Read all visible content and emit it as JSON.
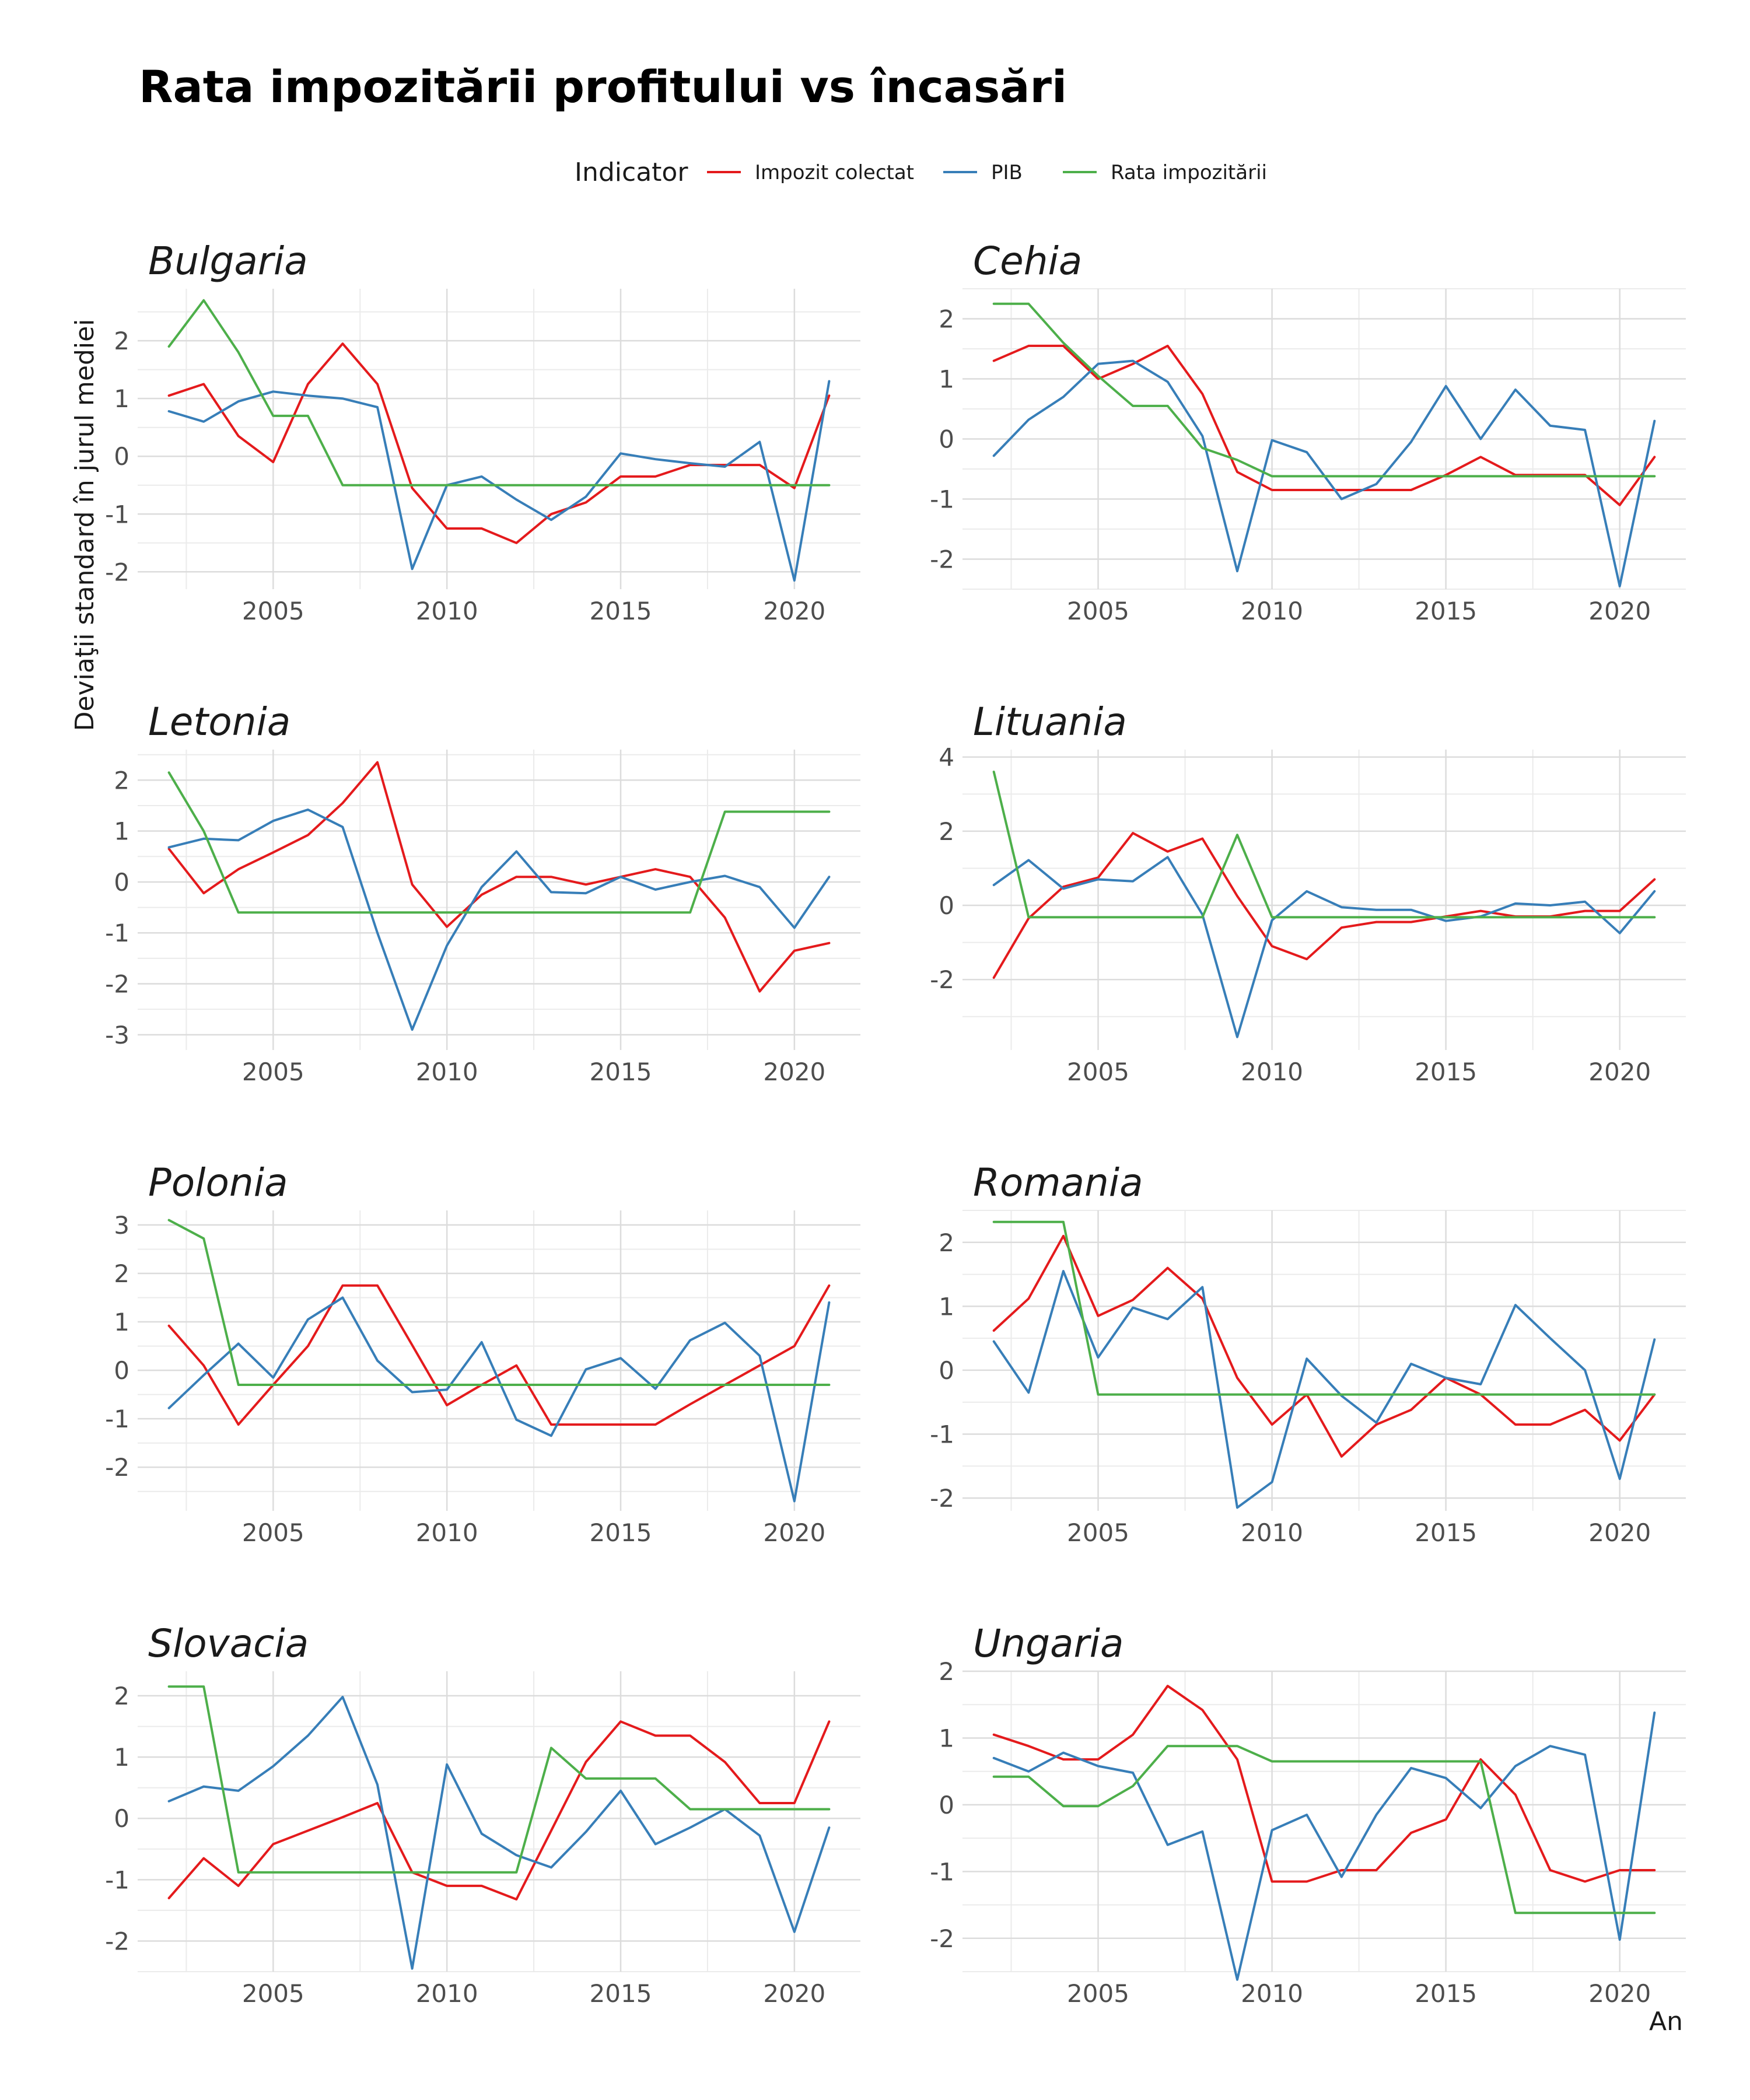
{
  "title": "Rata impozitării profitului vs încasări",
  "legend": {
    "title": "Indicator",
    "items": [
      {
        "label": "Impozit colectat",
        "color": "#e41a1c"
      },
      {
        "label": "PIB",
        "color": "#377eb8"
      },
      {
        "label": "Rata impozitării",
        "color": "#4daf4a"
      }
    ]
  },
  "ylabel": "Deviaţii standard în jurul mediei",
  "xlabel": "An",
  "chart_data": [
    {
      "type": "line",
      "title": "Bulgaria",
      "x": [
        2002,
        2003,
        2004,
        2005,
        2006,
        2007,
        2008,
        2009,
        2010,
        2011,
        2012,
        2013,
        2014,
        2015,
        2016,
        2017,
        2018,
        2019,
        2020,
        2021
      ],
      "ylim": [
        -2.3,
        2.9
      ],
      "yticks": [
        -2,
        -1,
        0,
        1,
        2
      ],
      "xticks": [
        2005,
        2010,
        2015,
        2020
      ],
      "series": [
        {
          "name": "Impozit colectat",
          "values": [
            1.05,
            1.25,
            0.35,
            -0.1,
            1.25,
            1.95,
            1.25,
            -0.55,
            -1.25,
            -1.25,
            -1.5,
            -1.0,
            -0.8,
            -0.35,
            -0.35,
            -0.15,
            -0.15,
            -0.15,
            -0.55,
            1.05
          ]
        },
        {
          "name": "PIB",
          "values": [
            0.78,
            0.6,
            0.95,
            1.12,
            1.05,
            1.0,
            0.85,
            -1.95,
            -0.5,
            -0.35,
            -0.75,
            -1.1,
            -0.7,
            0.05,
            -0.05,
            -0.12,
            -0.18,
            0.25,
            -2.15,
            1.3
          ]
        },
        {
          "name": "Rata impozitării",
          "values": [
            1.9,
            2.7,
            1.8,
            0.7,
            0.7,
            -0.5,
            -0.5,
            -0.5,
            -0.5,
            -0.5,
            -0.5,
            -0.5,
            -0.5,
            -0.5,
            -0.5,
            -0.5,
            -0.5,
            -0.5,
            -0.5,
            -0.5
          ]
        }
      ]
    },
    {
      "type": "line",
      "title": "Cehia",
      "x": [
        2002,
        2003,
        2004,
        2005,
        2006,
        2007,
        2008,
        2009,
        2010,
        2011,
        2012,
        2013,
        2014,
        2015,
        2016,
        2017,
        2018,
        2019,
        2020,
        2021
      ],
      "ylim": [
        -2.5,
        2.5
      ],
      "yticks": [
        -2,
        -1,
        0,
        1,
        2
      ],
      "xticks": [
        2005,
        2010,
        2015,
        2020
      ],
      "series": [
        {
          "name": "Impozit colectat",
          "values": [
            1.3,
            1.55,
            1.55,
            1.0,
            1.25,
            1.55,
            0.75,
            -0.55,
            -0.85,
            -0.85,
            -0.85,
            -0.85,
            -0.85,
            -0.6,
            -0.3,
            -0.6,
            -0.6,
            -0.6,
            -1.1,
            -0.3
          ]
        },
        {
          "name": "PIB",
          "values": [
            -0.28,
            0.32,
            0.7,
            1.25,
            1.3,
            0.95,
            0.05,
            -2.2,
            -0.02,
            -0.22,
            -1.0,
            -0.75,
            -0.05,
            0.88,
            0.0,
            0.82,
            0.22,
            0.15,
            -2.45,
            0.3
          ]
        },
        {
          "name": "Rata impozitării",
          "values": [
            2.25,
            2.25,
            1.6,
            1.05,
            0.55,
            0.55,
            -0.15,
            -0.35,
            -0.62,
            -0.62,
            -0.62,
            -0.62,
            -0.62,
            -0.62,
            -0.62,
            -0.62,
            -0.62,
            -0.62,
            -0.62,
            -0.62
          ]
        }
      ]
    },
    {
      "type": "line",
      "title": "Letonia",
      "x": [
        2002,
        2003,
        2004,
        2005,
        2006,
        2007,
        2008,
        2009,
        2010,
        2011,
        2012,
        2013,
        2014,
        2015,
        2016,
        2017,
        2018,
        2019,
        2020,
        2021
      ],
      "ylim": [
        -3.3,
        2.6
      ],
      "yticks": [
        -3,
        -2,
        -1,
        0,
        1,
        2
      ],
      "xticks": [
        2005,
        2010,
        2015,
        2020
      ],
      "series": [
        {
          "name": "Impozit colectat",
          "values": [
            0.65,
            -0.22,
            0.25,
            0.58,
            0.92,
            1.55,
            2.35,
            -0.05,
            -0.88,
            -0.25,
            0.1,
            0.1,
            -0.05,
            0.1,
            0.25,
            0.1,
            -0.7,
            -2.15,
            -1.35,
            -1.2
          ]
        },
        {
          "name": "PIB",
          "values": [
            0.68,
            0.85,
            0.82,
            1.2,
            1.42,
            1.08,
            -1.0,
            -2.9,
            -1.25,
            -0.1,
            0.6,
            -0.2,
            -0.22,
            0.1,
            -0.15,
            0.0,
            0.12,
            -0.1,
            -0.9,
            0.1
          ]
        },
        {
          "name": "Rata impozitării",
          "values": [
            2.15,
            1.0,
            -0.6,
            -0.6,
            -0.6,
            -0.6,
            -0.6,
            -0.6,
            -0.6,
            -0.6,
            -0.6,
            -0.6,
            -0.6,
            -0.6,
            -0.6,
            -0.6,
            1.38,
            1.38,
            1.38,
            1.38
          ]
        }
      ]
    },
    {
      "type": "line",
      "title": "Lituania",
      "x": [
        2002,
        2003,
        2004,
        2005,
        2006,
        2007,
        2008,
        2009,
        2010,
        2011,
        2012,
        2013,
        2014,
        2015,
        2016,
        2017,
        2018,
        2019,
        2020,
        2021
      ],
      "ylim": [
        -3.9,
        4.2
      ],
      "yticks": [
        -2,
        0,
        2,
        4
      ],
      "xticks": [
        2005,
        2010,
        2015,
        2020
      ],
      "series": [
        {
          "name": "Impozit colectat",
          "values": [
            -1.95,
            -0.35,
            0.5,
            0.75,
            1.95,
            1.45,
            1.8,
            0.25,
            -1.1,
            -1.45,
            -0.6,
            -0.45,
            -0.45,
            -0.3,
            -0.15,
            -0.3,
            -0.3,
            -0.15,
            -0.15,
            0.7
          ]
        },
        {
          "name": "PIB",
          "values": [
            0.55,
            1.22,
            0.45,
            0.7,
            0.65,
            1.3,
            -0.25,
            -3.55,
            -0.4,
            0.38,
            -0.05,
            -0.12,
            -0.12,
            -0.42,
            -0.3,
            0.05,
            0.0,
            0.1,
            -0.75,
            0.38
          ]
        },
        {
          "name": "Rata impozitării",
          "values": [
            3.6,
            -0.32,
            -0.32,
            -0.32,
            -0.32,
            -0.32,
            -0.32,
            1.9,
            -0.32,
            -0.32,
            -0.32,
            -0.32,
            -0.32,
            -0.32,
            -0.32,
            -0.32,
            -0.32,
            -0.32,
            -0.32,
            -0.32
          ]
        }
      ]
    },
    {
      "type": "line",
      "title": "Polonia",
      "x": [
        2002,
        2003,
        2004,
        2005,
        2006,
        2007,
        2008,
        2009,
        2010,
        2011,
        2012,
        2013,
        2014,
        2015,
        2016,
        2017,
        2018,
        2019,
        2020,
        2021
      ],
      "ylim": [
        -2.9,
        3.3
      ],
      "yticks": [
        -2,
        -1,
        0,
        1,
        2,
        3
      ],
      "xticks": [
        2005,
        2010,
        2015,
        2020
      ],
      "series": [
        {
          "name": "Impozit colectat",
          "values": [
            0.92,
            0.1,
            -1.12,
            -0.3,
            0.5,
            1.75,
            1.75,
            0.52,
            -0.72,
            -0.3,
            0.1,
            -1.12,
            -1.12,
            -1.12,
            -1.12,
            -0.7,
            -0.3,
            0.1,
            0.5,
            1.75
          ]
        },
        {
          "name": "PIB",
          "values": [
            -0.78,
            -0.1,
            0.55,
            -0.15,
            1.05,
            1.5,
            0.2,
            -0.45,
            -0.4,
            0.58,
            -1.02,
            -1.35,
            0.02,
            0.25,
            -0.38,
            0.62,
            0.98,
            0.3,
            -2.7,
            1.4
          ]
        },
        {
          "name": "Rata impozitării",
          "values": [
            3.1,
            2.72,
            -0.3,
            -0.3,
            -0.3,
            -0.3,
            -0.3,
            -0.3,
            -0.3,
            -0.3,
            -0.3,
            -0.3,
            -0.3,
            -0.3,
            -0.3,
            -0.3,
            -0.3,
            -0.3,
            -0.3,
            -0.3
          ]
        }
      ]
    },
    {
      "type": "line",
      "title": "Romania",
      "x": [
        2002,
        2003,
        2004,
        2005,
        2006,
        2007,
        2008,
        2009,
        2010,
        2011,
        2012,
        2013,
        2014,
        2015,
        2016,
        2017,
        2018,
        2019,
        2020,
        2021
      ],
      "ylim": [
        -2.2,
        2.5
      ],
      "yticks": [
        -2,
        -1,
        0,
        1,
        2
      ],
      "xticks": [
        2005,
        2010,
        2015,
        2020
      ],
      "series": [
        {
          "name": "Impozit colectat",
          "values": [
            0.62,
            1.12,
            2.1,
            0.85,
            1.1,
            1.6,
            1.12,
            -0.12,
            -0.85,
            -0.38,
            -1.35,
            -0.85,
            -0.62,
            -0.12,
            -0.38,
            -0.85,
            -0.85,
            -0.62,
            -1.1,
            -0.38
          ]
        },
        {
          "name": "PIB",
          "values": [
            0.45,
            -0.35,
            1.55,
            0.2,
            0.98,
            0.8,
            1.3,
            -2.15,
            -1.75,
            0.18,
            -0.4,
            -0.82,
            0.1,
            -0.12,
            -0.22,
            1.02,
            0.5,
            0.0,
            -1.7,
            0.48
          ]
        },
        {
          "name": "Rata impozitării",
          "values": [
            2.32,
            2.32,
            2.32,
            -0.38,
            -0.38,
            -0.38,
            -0.38,
            -0.38,
            -0.38,
            -0.38,
            -0.38,
            -0.38,
            -0.38,
            -0.38,
            -0.38,
            -0.38,
            -0.38,
            -0.38,
            -0.38,
            -0.38
          ]
        }
      ]
    },
    {
      "type": "line",
      "title": "Slovacia",
      "x": [
        2002,
        2003,
        2004,
        2005,
        2006,
        2007,
        2008,
        2009,
        2010,
        2011,
        2012,
        2013,
        2014,
        2015,
        2016,
        2017,
        2018,
        2019,
        2020,
        2021
      ],
      "ylim": [
        -2.5,
        2.4
      ],
      "yticks": [
        -2,
        -1,
        0,
        1,
        2
      ],
      "xticks": [
        2005,
        2010,
        2015,
        2020
      ],
      "series": [
        {
          "name": "Impozit colectat",
          "values": [
            -1.3,
            -0.65,
            -1.1,
            -0.42,
            -0.2,
            0.02,
            0.25,
            -0.88,
            -1.1,
            -1.1,
            -1.32,
            -0.2,
            0.92,
            1.58,
            1.35,
            1.35,
            0.92,
            0.25,
            0.25,
            1.58
          ]
        },
        {
          "name": "PIB",
          "values": [
            0.28,
            0.52,
            0.45,
            0.85,
            1.35,
            1.98,
            0.55,
            -2.45,
            0.88,
            -0.25,
            -0.6,
            -0.8,
            -0.22,
            0.45,
            -0.42,
            -0.15,
            0.15,
            -0.28,
            -1.85,
            -0.15
          ]
        },
        {
          "name": "Rata impozitării",
          "values": [
            2.15,
            2.15,
            -0.88,
            -0.88,
            -0.88,
            -0.88,
            -0.88,
            -0.88,
            -0.88,
            -0.88,
            -0.88,
            1.15,
            0.65,
            0.65,
            0.65,
            0.15,
            0.15,
            0.15,
            0.15,
            0.15
          ]
        }
      ]
    },
    {
      "type": "line",
      "title": "Ungaria",
      "x": [
        2002,
        2003,
        2004,
        2005,
        2006,
        2007,
        2008,
        2009,
        2010,
        2011,
        2012,
        2013,
        2014,
        2015,
        2016,
        2017,
        2018,
        2019,
        2020,
        2021
      ],
      "ylim": [
        -2.5,
        2.0
      ],
      "yticks": [
        -2,
        -1,
        0,
        1,
        2
      ],
      "xticks": [
        2005,
        2010,
        2015,
        2020
      ],
      "series": [
        {
          "name": "Impozit colectat",
          "values": [
            1.05,
            0.88,
            0.68,
            0.68,
            1.05,
            1.78,
            1.42,
            0.68,
            -1.15,
            -1.15,
            -0.98,
            -0.98,
            -0.42,
            -0.22,
            0.68,
            0.15,
            -0.98,
            -1.15,
            -0.98,
            -0.98
          ]
        },
        {
          "name": "PIB",
          "values": [
            0.7,
            0.5,
            0.78,
            0.58,
            0.48,
            -0.6,
            -0.4,
            -2.62,
            -0.38,
            -0.15,
            -1.08,
            -0.15,
            0.55,
            0.4,
            -0.05,
            0.58,
            0.88,
            0.75,
            -2.02,
            1.38
          ]
        },
        {
          "name": "Rata impozitării",
          "values": [
            0.42,
            0.42,
            -0.02,
            -0.02,
            0.28,
            0.88,
            0.88,
            0.88,
            0.65,
            0.65,
            0.65,
            0.65,
            0.65,
            0.65,
            0.65,
            -1.62,
            -1.62,
            -1.62,
            -1.62,
            -1.62
          ]
        }
      ]
    }
  ]
}
